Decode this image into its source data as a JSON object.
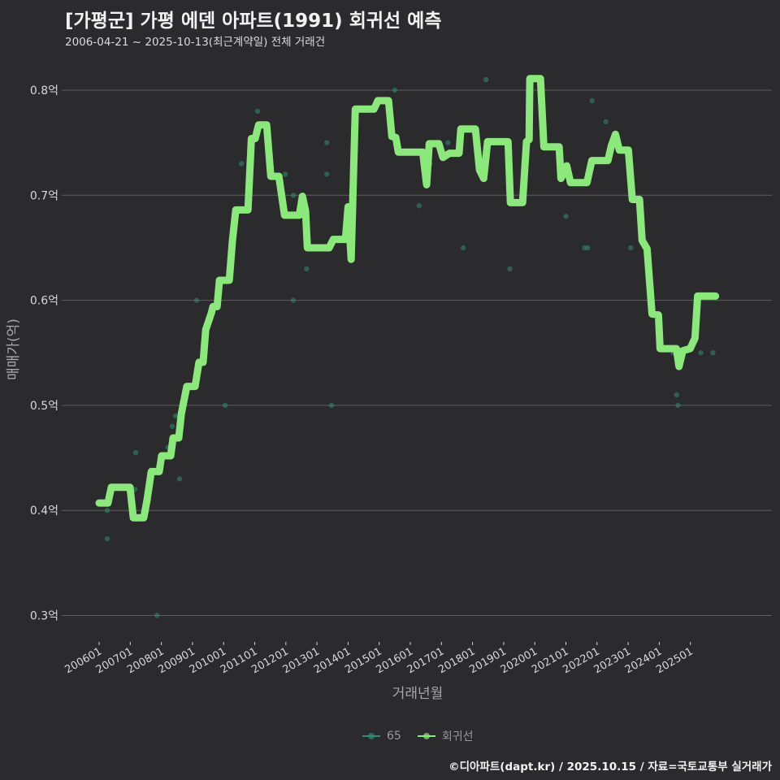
{
  "header": {
    "title": "[가평군] 가평 에덴 아파트(1991) 회귀선 예측",
    "subtitle": "2006-04-21 ~ 2025-10-13(최근계약일) 전체 거래건"
  },
  "legend": [
    {
      "label": "65",
      "color": "#2f8a78"
    },
    {
      "label": "회귀선",
      "color": "#8be87a"
    }
  ],
  "footer": "©디아파트(dapt.kr) / 2025.10.15 / 자료=국토교통부 실거래가",
  "colors": {
    "background": "#2b2a2c",
    "grid": "#5e5d60",
    "line": "#8be87a",
    "scatter": "#2f8a78"
  },
  "chart_data": {
    "type": "line",
    "title": "[가평군] 가평 에덴 아파트(1991) 회귀선 예측",
    "subtitle": "2006-04-21 ~ 2025-10-13(최근계약일) 전체 거래건",
    "xlabel": "거래년월",
    "ylabel": "매매가(억)",
    "ylim": [
      0.28,
      0.83
    ],
    "yticks": [
      0.3,
      0.4,
      0.5,
      0.6,
      0.7,
      0.8
    ],
    "ytick_labels": [
      "0.3억",
      "0.4억",
      "0.5억",
      "0.6억",
      "0.7억",
      "0.8억"
    ],
    "xticks": [
      "200601",
      "200701",
      "200801",
      "200901",
      "201001",
      "201101",
      "201201",
      "201301",
      "201401",
      "201501",
      "201601",
      "201701",
      "201801",
      "201901",
      "202001",
      "202101",
      "202201",
      "202301",
      "202401",
      "202501"
    ],
    "grid": true,
    "legend_position": "bottom",
    "x_unit": "months since 2006-01",
    "series": [
      {
        "name": "회귀선",
        "type": "line",
        "points": [
          [
            0.0,
            0.407
          ],
          [
            3.4,
            0.407
          ],
          [
            4.7,
            0.422
          ],
          [
            11.9,
            0.422
          ],
          [
            13.2,
            0.393
          ],
          [
            17.2,
            0.393
          ],
          [
            18.5,
            0.41
          ],
          [
            20.1,
            0.437
          ],
          [
            23.2,
            0.437
          ],
          [
            24.1,
            0.452
          ],
          [
            27.6,
            0.452
          ],
          [
            28.5,
            0.469
          ],
          [
            30.7,
            0.469
          ],
          [
            31.7,
            0.492
          ],
          [
            33.8,
            0.518
          ],
          [
            37.0,
            0.518
          ],
          [
            38.5,
            0.541
          ],
          [
            40.1,
            0.541
          ],
          [
            41.1,
            0.572
          ],
          [
            43.3,
            0.588
          ],
          [
            43.9,
            0.594
          ],
          [
            45.5,
            0.594
          ],
          [
            46.4,
            0.619
          ],
          [
            50.2,
            0.619
          ],
          [
            51.4,
            0.657
          ],
          [
            52.7,
            0.686
          ],
          [
            57.4,
            0.686
          ],
          [
            58.7,
            0.754
          ],
          [
            60.2,
            0.754
          ],
          [
            61.5,
            0.767
          ],
          [
            64.6,
            0.767
          ],
          [
            66.2,
            0.718
          ],
          [
            69.3,
            0.718
          ],
          [
            71.5,
            0.681
          ],
          [
            77.2,
            0.681
          ],
          [
            78.4,
            0.699
          ],
          [
            79.6,
            0.685
          ],
          [
            80.3,
            0.65
          ],
          [
            88.7,
            0.65
          ],
          [
            90.3,
            0.658
          ],
          [
            95.0,
            0.658
          ],
          [
            96.0,
            0.689
          ],
          [
            97.2,
            0.639
          ],
          [
            98.8,
            0.782
          ],
          [
            106.0,
            0.782
          ],
          [
            107.5,
            0.79
          ],
          [
            111.6,
            0.79
          ],
          [
            112.9,
            0.756
          ],
          [
            114.4,
            0.755
          ],
          [
            115.4,
            0.741
          ],
          [
            124.8,
            0.741
          ],
          [
            126.3,
            0.71
          ],
          [
            127.3,
            0.749
          ],
          [
            131.0,
            0.749
          ],
          [
            132.6,
            0.736
          ],
          [
            135.1,
            0.74
          ],
          [
            138.8,
            0.74
          ],
          [
            139.5,
            0.763
          ],
          [
            145.1,
            0.763
          ],
          [
            146.7,
            0.724
          ],
          [
            148.3,
            0.716
          ],
          [
            149.8,
            0.751
          ],
          [
            157.7,
            0.751
          ],
          [
            158.6,
            0.693
          ],
          [
            163.3,
            0.693
          ],
          [
            164.8,
            0.751
          ],
          [
            165.8,
            0.753
          ],
          [
            166.1,
            0.811
          ],
          [
            170.2,
            0.811
          ],
          [
            171.5,
            0.746
          ],
          [
            177.4,
            0.746
          ],
          [
            178.1,
            0.716
          ],
          [
            180.3,
            0.728
          ],
          [
            181.8,
            0.712
          ],
          [
            188.1,
            0.712
          ],
          [
            190.0,
            0.733
          ],
          [
            196.2,
            0.733
          ],
          [
            197.5,
            0.747
          ],
          [
            199.1,
            0.758
          ],
          [
            200.6,
            0.743
          ],
          [
            204.1,
            0.743
          ],
          [
            205.6,
            0.696
          ],
          [
            208.4,
            0.696
          ],
          [
            209.4,
            0.657
          ],
          [
            211.3,
            0.649
          ],
          [
            213.2,
            0.587
          ],
          [
            215.7,
            0.586
          ],
          [
            216.3,
            0.554
          ],
          [
            222.6,
            0.554
          ],
          [
            223.6,
            0.537
          ],
          [
            225.1,
            0.552
          ],
          [
            227.9,
            0.554
          ],
          [
            229.8,
            0.564
          ],
          [
            230.8,
            0.604
          ],
          [
            237.7,
            0.604
          ]
        ]
      },
      {
        "name": "65",
        "type": "scatter",
        "points": [
          [
            3.1,
            0.4
          ],
          [
            3.1,
            0.373
          ],
          [
            14.1,
            0.455
          ],
          [
            13.8,
            0.42
          ],
          [
            18.2,
            0.4
          ],
          [
            22.3,
            0.3
          ],
          [
            26.6,
            0.46
          ],
          [
            28.2,
            0.48
          ],
          [
            29.5,
            0.49
          ],
          [
            31.0,
            0.43
          ],
          [
            37.6,
            0.6
          ],
          [
            48.6,
            0.5
          ],
          [
            54.9,
            0.73
          ],
          [
            61.1,
            0.78
          ],
          [
            71.8,
            0.72
          ],
          [
            74.9,
            0.7
          ],
          [
            74.9,
            0.6
          ],
          [
            80.0,
            0.63
          ],
          [
            87.8,
            0.75
          ],
          [
            87.8,
            0.72
          ],
          [
            89.6,
            0.5
          ],
          [
            97.2,
            0.69
          ],
          [
            114.0,
            0.8
          ],
          [
            123.4,
            0.69
          ],
          [
            127.6,
            0.73
          ],
          [
            134.5,
            0.75
          ],
          [
            140.4,
            0.65
          ],
          [
            149.2,
            0.81
          ],
          [
            158.4,
            0.63
          ],
          [
            167.4,
            0.81
          ],
          [
            180.0,
            0.68
          ],
          [
            187.2,
            0.65
          ],
          [
            188.4,
            0.65
          ],
          [
            190.1,
            0.79
          ],
          [
            195.4,
            0.77
          ],
          [
            205.0,
            0.65
          ],
          [
            212.5,
            0.6
          ],
          [
            221.4,
            0.55
          ],
          [
            222.7,
            0.51
          ],
          [
            223.2,
            0.5
          ],
          [
            232.0,
            0.55
          ],
          [
            236.7,
            0.55
          ]
        ]
      }
    ]
  },
  "axes": {
    "xlabel": "거래년월",
    "ylabel": "매매가(억)"
  }
}
